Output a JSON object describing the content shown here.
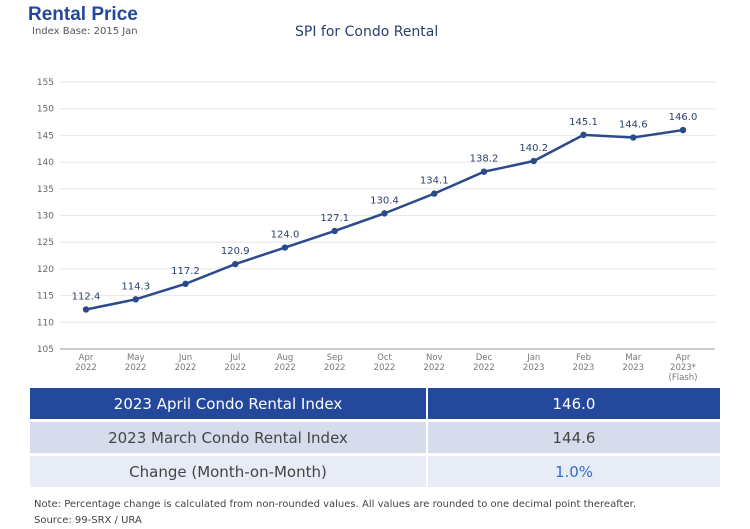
{
  "header": {
    "title": "Rental Price",
    "subtitle": "Index Base: 2015 Jan"
  },
  "chart_data": {
    "type": "line",
    "title": "SPI for Condo Rental",
    "categories": [
      [
        "Apr",
        "2022"
      ],
      [
        "May",
        "2022"
      ],
      [
        "Jun",
        "2022"
      ],
      [
        "Jul",
        "2022"
      ],
      [
        "Aug",
        "2022"
      ],
      [
        "Sep",
        "2022"
      ],
      [
        "Oct",
        "2022"
      ],
      [
        "Nov",
        "2022"
      ],
      [
        "Dec",
        "2022"
      ],
      [
        "Jan",
        "2023"
      ],
      [
        "Feb",
        "2023"
      ],
      [
        "Mar",
        "2023"
      ],
      [
        "Apr",
        "2023*",
        "(Flash)"
      ]
    ],
    "values": [
      112.4,
      114.3,
      117.2,
      120.9,
      124.0,
      127.1,
      130.4,
      134.1,
      138.2,
      140.2,
      145.1,
      144.6,
      146.0
    ],
    "data_labels": [
      "112.4",
      "114.3",
      "117.2",
      "120.9",
      "124.0",
      "127.1",
      "130.4",
      "134.1",
      "138.2",
      "140.2",
      "145.1",
      "144.6",
      "146.0"
    ],
    "ylim": [
      105,
      155
    ],
    "yticks": [
      105,
      110,
      115,
      120,
      125,
      130,
      135,
      140,
      145,
      150,
      155
    ],
    "grid": true,
    "color": "#2a4a8c"
  },
  "table": {
    "rows": [
      {
        "label": "2023 April Condo Rental Index",
        "value": "146.0"
      },
      {
        "label": "2023 March Condo Rental Index",
        "value": "144.6"
      },
      {
        "label": "Change (Month-on-Month)",
        "value": "1.0%"
      }
    ]
  },
  "footer": {
    "note": "Note: Percentage change is calculated from non-rounded values.  All values are rounded to one decimal point thereafter.",
    "source": "Source: 99-SRX / URA"
  }
}
